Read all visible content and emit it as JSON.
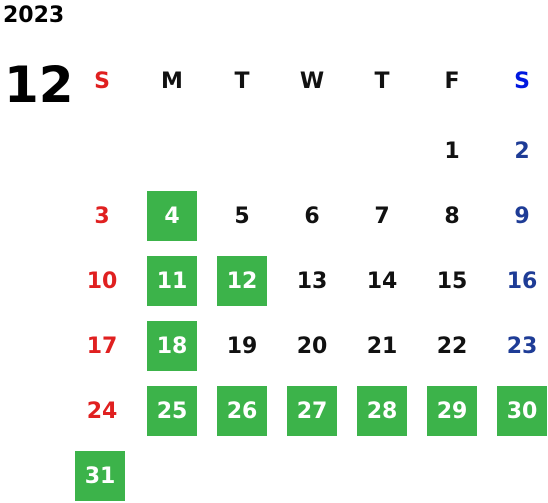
{
  "year": "2023",
  "month": "12",
  "weekdays": [
    "S",
    "M",
    "T",
    "W",
    "T",
    "F",
    "S"
  ],
  "weekday_colors": [
    "#e02020",
    "#111111",
    "#111111",
    "#111111",
    "#111111",
    "#111111",
    "#0018e0"
  ],
  "day_colors": [
    "#e02020",
    "#111111",
    "#111111",
    "#111111",
    "#111111",
    "#111111",
    "#1e3c96"
  ],
  "highlight_color": "#3cb34a",
  "weeks": [
    [
      null,
      null,
      null,
      null,
      null,
      {
        "day": 1,
        "highlight": false
      },
      {
        "day": 2,
        "highlight": false
      }
    ],
    [
      {
        "day": 3,
        "highlight": false
      },
      {
        "day": 4,
        "highlight": true
      },
      {
        "day": 5,
        "highlight": false
      },
      {
        "day": 6,
        "highlight": false
      },
      {
        "day": 7,
        "highlight": false
      },
      {
        "day": 8,
        "highlight": false
      },
      {
        "day": 9,
        "highlight": false
      }
    ],
    [
      {
        "day": 10,
        "highlight": false
      },
      {
        "day": 11,
        "highlight": true
      },
      {
        "day": 12,
        "highlight": true
      },
      {
        "day": 13,
        "highlight": false
      },
      {
        "day": 14,
        "highlight": false
      },
      {
        "day": 15,
        "highlight": false
      },
      {
        "day": 16,
        "highlight": false
      }
    ],
    [
      {
        "day": 17,
        "highlight": false
      },
      {
        "day": 18,
        "highlight": true
      },
      {
        "day": 19,
        "highlight": false
      },
      {
        "day": 20,
        "highlight": false
      },
      {
        "day": 21,
        "highlight": false
      },
      {
        "day": 22,
        "highlight": false
      },
      {
        "day": 23,
        "highlight": false
      }
    ],
    [
      {
        "day": 24,
        "highlight": false
      },
      {
        "day": 25,
        "highlight": true
      },
      {
        "day": 26,
        "highlight": true
      },
      {
        "day": 27,
        "highlight": true
      },
      {
        "day": 28,
        "highlight": true
      },
      {
        "day": 29,
        "highlight": true
      },
      {
        "day": 30,
        "highlight": true
      }
    ],
    [
      {
        "day": 31,
        "highlight": true
      },
      null,
      null,
      null,
      null,
      null,
      null
    ]
  ]
}
